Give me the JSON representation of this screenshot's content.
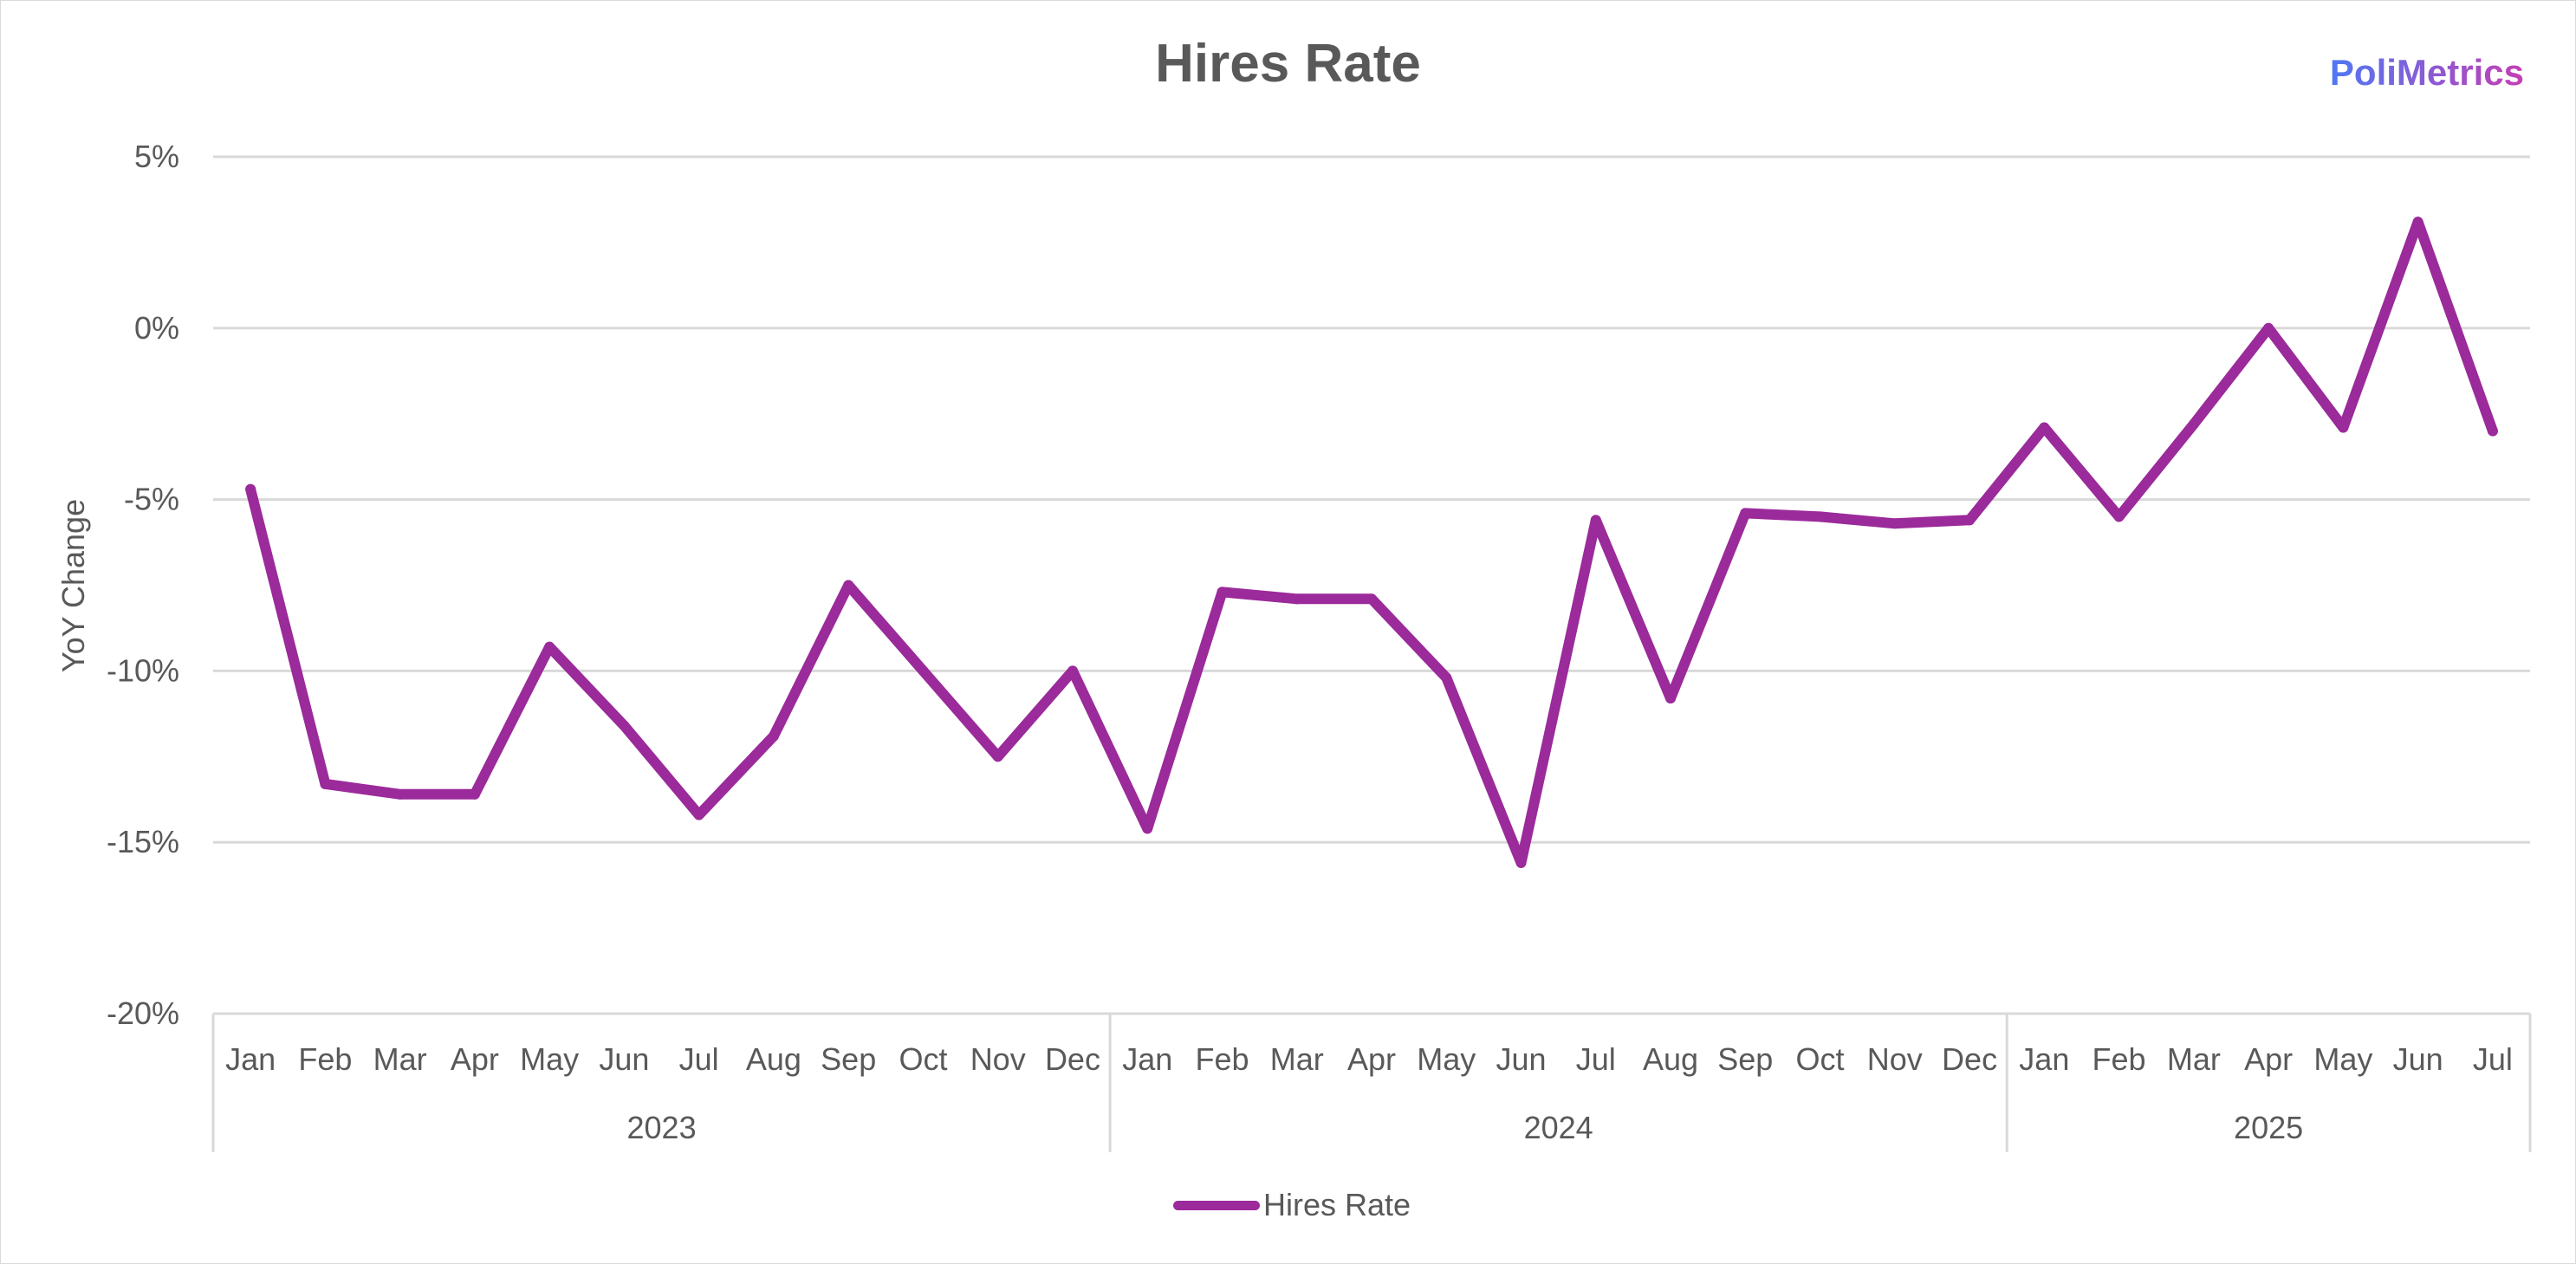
{
  "brand": "PoliMetrics",
  "colors": {
    "series": "#9b2a9b",
    "gridline": "#d9d9d9",
    "text": "#595959"
  },
  "chart_data": {
    "type": "line",
    "title": "Hires Rate",
    "ylabel": "YoY Change",
    "xlabel": "",
    "ylim": [
      -20,
      5
    ],
    "yticks": [
      5,
      0,
      -5,
      -10,
      -15,
      -20
    ],
    "ytick_labels": [
      "5%",
      "0%",
      "-5%",
      "-10%",
      "-15%",
      "-20%"
    ],
    "grid": true,
    "legend_position": "bottom",
    "x": [
      "Jan",
      "Feb",
      "Mar",
      "Apr",
      "May",
      "Jun",
      "Jul",
      "Aug",
      "Sep",
      "Oct",
      "Nov",
      "Dec",
      "Jan",
      "Feb",
      "Mar",
      "Apr",
      "May",
      "Jun",
      "Jul",
      "Aug",
      "Sep",
      "Oct",
      "Nov",
      "Dec",
      "Jan",
      "Feb",
      "Mar",
      "Apr",
      "May",
      "Jun",
      "Jul"
    ],
    "year_groups": [
      {
        "label": "2023",
        "count": 12
      },
      {
        "label": "2024",
        "count": 12
      },
      {
        "label": "2025",
        "count": 7
      }
    ],
    "series": [
      {
        "name": "Hires Rate",
        "values": [
          -4.7,
          -13.3,
          -13.6,
          -13.6,
          -9.3,
          -11.6,
          -14.2,
          -11.9,
          -7.5,
          -10.0,
          -12.5,
          -10.0,
          -14.6,
          -7.7,
          -7.9,
          -7.9,
          -10.2,
          -15.6,
          -5.6,
          -10.8,
          -5.4,
          -5.5,
          -5.7,
          -5.6,
          -2.9,
          -5.5,
          -2.8,
          0.0,
          -2.9,
          3.1,
          -3.0
        ]
      }
    ]
  }
}
